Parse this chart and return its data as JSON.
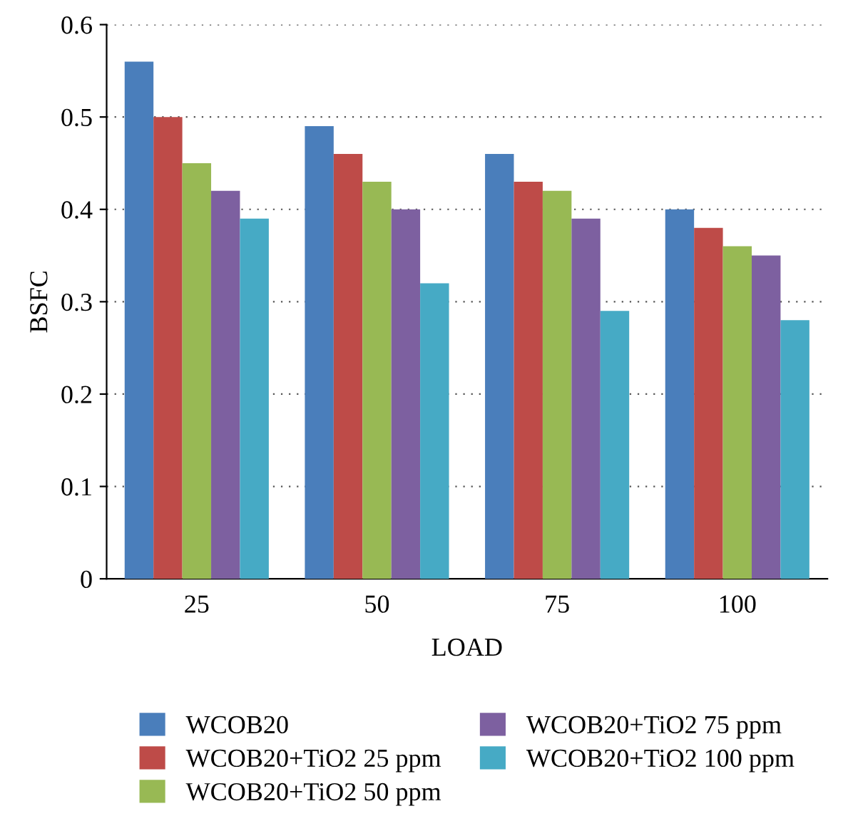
{
  "chart_data": {
    "type": "bar",
    "xlabel": "LOAD",
    "ylabel": "BSFC",
    "categories": [
      "25",
      "50",
      "75",
      "100"
    ],
    "series": [
      {
        "name": "WCOB20",
        "color": "#4a7ebb",
        "values": [
          0.56,
          0.49,
          0.46,
          0.4
        ]
      },
      {
        "name": "WCOB20+TiO2 25 ppm",
        "color": "#be4b48",
        "values": [
          0.5,
          0.46,
          0.43,
          0.38
        ]
      },
      {
        "name": "WCOB20+TiO2 50 ppm",
        "color": "#98b954",
        "values": [
          0.45,
          0.43,
          0.42,
          0.36
        ]
      },
      {
        "name": "WCOB20+TiO2 75 ppm",
        "color": "#7d60a0",
        "values": [
          0.42,
          0.4,
          0.39,
          0.35
        ]
      },
      {
        "name": "WCOB20+TiO2 100 ppm",
        "color": "#46aac5",
        "values": [
          0.39,
          0.32,
          0.29,
          0.28
        ]
      }
    ],
    "ylim": [
      0,
      0.6
    ],
    "yticks": [
      {
        "value": 0,
        "label": "0"
      },
      0.1,
      0.2,
      0.3,
      0.4,
      0.5,
      0.6
    ],
    "grid": "y",
    "legend": "bottom"
  }
}
